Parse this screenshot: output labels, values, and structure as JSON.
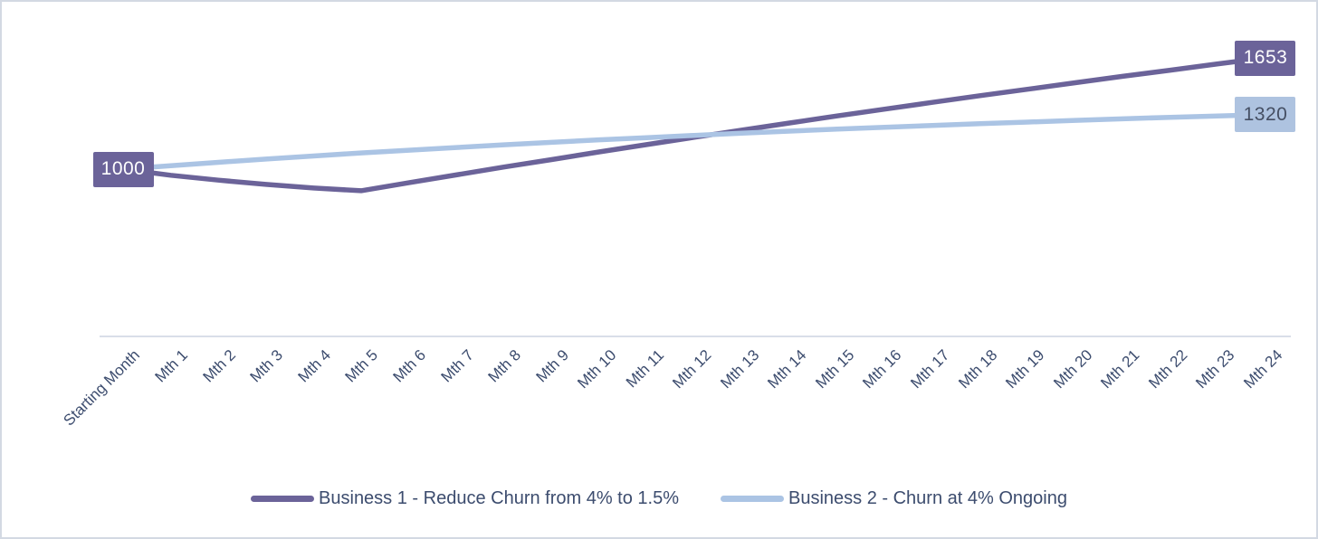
{
  "window": {
    "background": "#FFFFFF",
    "border_color": "#D3D9E3"
  },
  "chart_data": {
    "type": "line",
    "title": "",
    "xlabel": "",
    "ylabel": "",
    "grid": false,
    "y_axis_visible": false,
    "legend_position": "bottom",
    "categories": [
      "Starting Month",
      "Mth 1",
      "Mth 2",
      "Mth 3",
      "Mth 4",
      "Mth 5",
      "Mth 6",
      "Mth 7",
      "Mth 8",
      "Mth 9",
      "Mth 10",
      "Mth 11",
      "Mth 12",
      "Mth 13",
      "Mth 14",
      "Mth 15",
      "Mth 16",
      "Mth 17",
      "Mth 18",
      "Mth 19",
      "Mth 20",
      "Mth 21",
      "Mth 22",
      "Mth 23",
      "Mth 24"
    ],
    "series": [
      {
        "name": "Business 1 - Reduce Churn from 4% to 1.5%",
        "color": "#6B6399",
        "values": [
          1000,
          964,
          935,
          910,
          889,
          873,
          920,
          966,
          1012,
          1056,
          1101,
          1144,
          1187,
          1229,
          1271,
          1312,
          1352,
          1392,
          1431,
          1469,
          1507,
          1545,
          1581,
          1618,
          1653
        ]
      },
      {
        "name": "Business 2 - Churn at 4% Ongoing",
        "color": "#ABC4E4",
        "values": [
          1000,
          1020,
          1040,
          1059,
          1077,
          1095,
          1111,
          1127,
          1143,
          1157,
          1172,
          1185,
          1198,
          1211,
          1223,
          1235,
          1246,
          1256,
          1267,
          1276,
          1286,
          1295,
          1304,
          1312,
          1320
        ]
      }
    ],
    "data_labels": [
      {
        "text": "1000",
        "series_index": 0,
        "point_index": 0,
        "bg": "#6B6399",
        "text_color": "#FFFFFF"
      },
      {
        "text": "1653",
        "series_index": 0,
        "point_index": 24,
        "bg": "#6B6399",
        "text_color": "#FFFFFF"
      },
      {
        "text": "1320",
        "series_index": 1,
        "point_index": 24,
        "bg": "#AEC3E0",
        "text_color": "#454F63"
      }
    ],
    "legend_entries": [
      "Business 1 - Reduce Churn from 4% to 1.5%",
      "Business 2 - Churn at 4% Ongoing"
    ],
    "axes": {
      "x_label_color": "#3C4C6E",
      "axis_line_color": "#D9DEE9"
    }
  }
}
